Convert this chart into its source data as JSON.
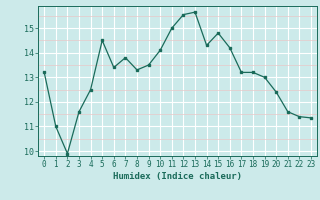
{
  "x": [
    0,
    1,
    2,
    3,
    4,
    5,
    6,
    7,
    8,
    9,
    10,
    11,
    12,
    13,
    14,
    15,
    16,
    17,
    18,
    19,
    20,
    21,
    22,
    23
  ],
  "y": [
    13.2,
    11.0,
    9.9,
    11.6,
    12.5,
    14.5,
    13.4,
    13.8,
    13.3,
    13.5,
    14.1,
    15.0,
    15.55,
    15.65,
    14.3,
    14.8,
    14.2,
    13.2,
    13.2,
    13.0,
    12.4,
    11.6,
    11.4,
    11.35
  ],
  "xlabel": "Humidex (Indice chaleur)",
  "ylim": [
    9.8,
    15.9
  ],
  "xlim": [
    -0.5,
    23.5
  ],
  "yticks": [
    10,
    11,
    12,
    13,
    14,
    15
  ],
  "xticks": [
    0,
    1,
    2,
    3,
    4,
    5,
    6,
    7,
    8,
    9,
    10,
    11,
    12,
    13,
    14,
    15,
    16,
    17,
    18,
    19,
    20,
    21,
    22,
    23
  ],
  "line_color": "#1a6b5a",
  "marker_color": "#1a6b5a",
  "bg_color": "#cceaea",
  "grid_major_color": "#ffffff",
  "grid_minor_color": "#e8c8c8"
}
